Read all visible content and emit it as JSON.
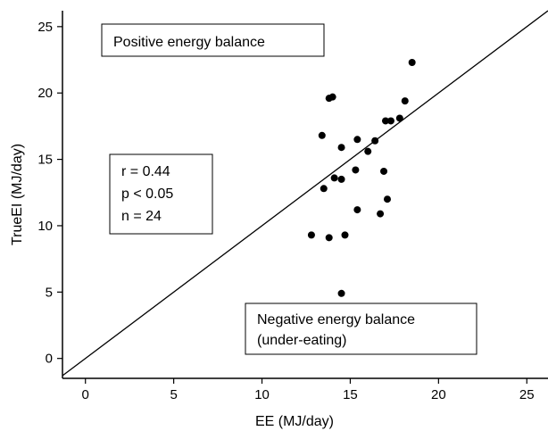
{
  "chart_data": {
    "type": "scatter",
    "xlabel": "EE  (MJ/day)",
    "ylabel": "TrueEI  (MJ/day)",
    "xlim": [
      -1.3,
      26.2
    ],
    "ylim": [
      -1.5,
      26.2
    ],
    "x_ticks": [
      0,
      5,
      10,
      15,
      20,
      25
    ],
    "y_ticks": [
      0,
      5,
      10,
      15,
      20,
      25
    ],
    "x_tick_labels": [
      "0",
      "5",
      "10",
      "15",
      "20",
      "25"
    ],
    "y_tick_labels": [
      "0",
      "5",
      "10",
      "15",
      "20",
      "25"
    ],
    "grid": false,
    "reference_line": {
      "from": [
        -1.3,
        -1.3
      ],
      "to": [
        26.2,
        26.2
      ]
    },
    "points": [
      {
        "x": 12.8,
        "y": 9.3
      },
      {
        "x": 13.4,
        "y": 16.8
      },
      {
        "x": 13.5,
        "y": 12.8
      },
      {
        "x": 13.8,
        "y": 9.1
      },
      {
        "x": 13.8,
        "y": 19.6
      },
      {
        "x": 14.0,
        "y": 19.7
      },
      {
        "x": 14.1,
        "y": 13.6
      },
      {
        "x": 14.5,
        "y": 13.5
      },
      {
        "x": 14.5,
        "y": 15.9
      },
      {
        "x": 14.5,
        "y": 4.9
      },
      {
        "x": 14.7,
        "y": 9.3
      },
      {
        "x": 15.3,
        "y": 14.2
      },
      {
        "x": 15.4,
        "y": 16.5
      },
      {
        "x": 15.4,
        "y": 11.2
      },
      {
        "x": 16.0,
        "y": 15.6
      },
      {
        "x": 16.4,
        "y": 16.4
      },
      {
        "x": 16.7,
        "y": 10.9
      },
      {
        "x": 16.9,
        "y": 14.1
      },
      {
        "x": 17.0,
        "y": 17.9
      },
      {
        "x": 17.1,
        "y": 12.0
      },
      {
        "x": 17.3,
        "y": 17.9
      },
      {
        "x": 17.8,
        "y": 18.1
      },
      {
        "x": 18.1,
        "y": 19.4
      },
      {
        "x": 18.5,
        "y": 22.3
      }
    ],
    "annotations": {
      "positive": "Positive energy balance",
      "negative_line1": "Negative energy balance",
      "negative_line2": "(under-eating)",
      "stats": [
        "r = 0.44",
        "p < 0.05",
        "n = 24"
      ]
    }
  }
}
